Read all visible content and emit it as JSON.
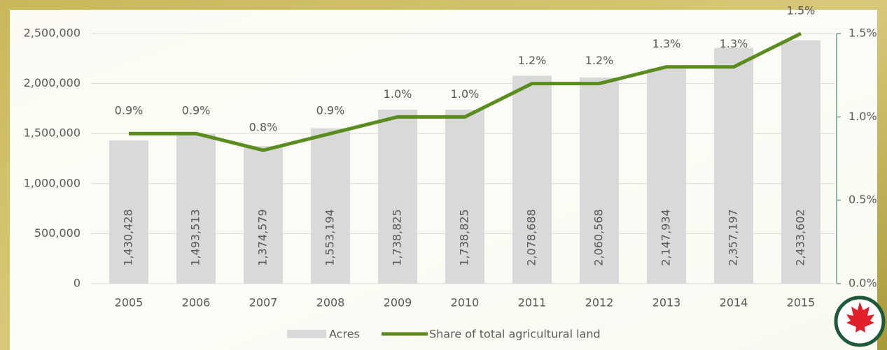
{
  "chart_data": {
    "type": "bar",
    "categories": [
      "2005",
      "2006",
      "2007",
      "2008",
      "2009",
      "2010",
      "2011",
      "2012",
      "2013",
      "2014",
      "2015"
    ],
    "series": [
      {
        "name": "Acres",
        "type": "bar",
        "color": "#d9d9d9",
        "values": [
          1430428,
          1493513,
          1374579,
          1553194,
          1738825,
          1738825,
          2078688,
          2060568,
          2147934,
          2357197,
          2433602
        ],
        "value_labels": [
          "1,430,428",
          "1,493,513",
          "1,374,579",
          "1,553,194",
          "1,738,825",
          "1,738,825",
          "2,078,688",
          "2,060,568",
          "2,147,934",
          "2,357,197",
          "2,433,602"
        ]
      },
      {
        "name": "Share of total agricultural land",
        "type": "line",
        "axis": "y2",
        "color": "#5b8c1f",
        "values": [
          0.9,
          0.9,
          0.8,
          0.9,
          1.0,
          1.0,
          1.2,
          1.2,
          1.3,
          1.3,
          1.5
        ],
        "value_labels": [
          "0.9%",
          "0.9%",
          "0.8%",
          "0.9%",
          "1.0%",
          "1.0%",
          "1.2%",
          "1.2%",
          "1.3%",
          "1.3%",
          "1.5%"
        ]
      }
    ],
    "ylim": [
      0,
      2500000
    ],
    "yticks": [
      0,
      {
        "value": 500000,
        "label": "500,000"
      },
      {
        "value": 1000000,
        "label": "1,000,000"
      },
      {
        "value": 1500000,
        "label": "1,500,000"
      },
      {
        "value": 2000000,
        "label": "2,000,000"
      },
      {
        "value": 2500000,
        "label": "2,500,000"
      }
    ],
    "y2lim": [
      0,
      1.5
    ],
    "y2ticks": [
      {
        "value": 0,
        "label": "0.0%"
      },
      {
        "value": 0.5,
        "label": "0.5%"
      },
      {
        "value": 1.0,
        "label": "1.0%"
      },
      {
        "value": 1.5,
        "label": "1.5%"
      }
    ],
    "grid": true,
    "legend": "bottom"
  }
}
